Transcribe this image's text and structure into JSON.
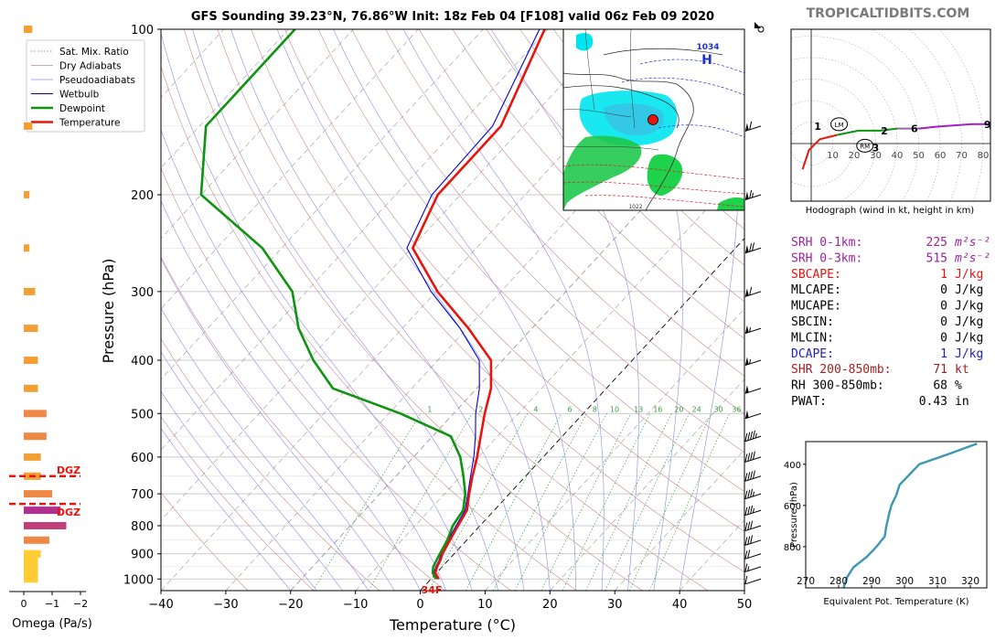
{
  "header": {
    "title": "GFS Sounding 39.23°N, 76.86°W Init: 18z Feb 04 [F108] valid 06z Feb 09 2020",
    "site": "TROPICALTIDBITS.COM"
  },
  "colors": {
    "temperature": "#e8140e",
    "dewpoint": "#0d9410",
    "wetbulb": "#0000dd",
    "dry_adiabat": "#c98b8b",
    "pseudoadiabat": "#8c8ce6",
    "mixing_ratio": "#3c9b3c",
    "dgz": "#e8140e",
    "theta_e": "#3a98b0"
  },
  "legend": {
    "items": [
      {
        "label": "Sat. Mix. Ratio",
        "style": "dotted",
        "color": "#3c9b3c"
      },
      {
        "label": "Dry Adiabats",
        "style": "solid-thin",
        "color": "#c98b8b"
      },
      {
        "label": "Pseudoadiabats",
        "style": "solid-thin",
        "color": "#8c8ce6"
      },
      {
        "label": "Wetbulb",
        "style": "solid",
        "color": "#0000dd"
      },
      {
        "label": "Dewpoint",
        "style": "thick",
        "color": "#0d9410"
      },
      {
        "label": "Temperature",
        "style": "thick",
        "color": "#e8140e"
      }
    ]
  },
  "axes": {
    "xlabel": "Temperature (°C)",
    "ylabel": "Pressure (hPa)",
    "omega_label": "Omega (Pa/s)",
    "x_ticks": [
      "−40",
      "−30",
      "−20",
      "−10",
      "0",
      "10",
      "20",
      "30",
      "40",
      "50"
    ],
    "x_tick_values": [
      -40,
      -30,
      -20,
      -10,
      0,
      10,
      20,
      30,
      40,
      50
    ],
    "p_ticks": [
      "100",
      "200",
      "300",
      "400",
      "500",
      "600",
      "700",
      "800",
      "900",
      "1000"
    ],
    "p_tick_values": [
      100,
      200,
      300,
      400,
      500,
      600,
      700,
      800,
      900,
      1000
    ],
    "omega_ticks": [
      "0",
      "−1",
      "−2"
    ],
    "omega_tick_values": [
      0,
      -1,
      -2
    ],
    "mixing_ratio_labels": [
      "1",
      "2",
      "4",
      "6",
      "8",
      "10",
      "13",
      "16",
      "20",
      "24",
      "30",
      "36"
    ]
  },
  "surface_label": "34F",
  "dgz_label": "DGZ",
  "chart_data": [
    {
      "type": "line",
      "name": "skew-t",
      "skew": "skew-t log-p",
      "xlim": [
        -40,
        50
      ],
      "ylim": [
        1050,
        100
      ],
      "y_scale": "log",
      "series": [
        {
          "name": "Temperature",
          "key": "temperature",
          "points": [
            [
              1000,
              1.2
            ],
            [
              975,
              -0.2
            ],
            [
              950,
              -0.8
            ],
            [
              925,
              -1.2
            ],
            [
              900,
              -1.8
            ],
            [
              850,
              -2.6
            ],
            [
              800,
              -3.4
            ],
            [
              750,
              -4.2
            ],
            [
              700,
              -6.2
            ],
            [
              650,
              -8.2
            ],
            [
              600,
              -10.2
            ],
            [
              550,
              -12.6
            ],
            [
              500,
              -15.2
            ],
            [
              450,
              -17.8
            ],
            [
              400,
              -21.8
            ],
            [
              350,
              -29.8
            ],
            [
              300,
              -39.8
            ],
            [
              250,
              -49.8
            ],
            [
              200,
              -53.5
            ],
            [
              150,
              -53.5
            ],
            [
              100,
              -60.5
            ]
          ]
        },
        {
          "name": "Wetbulb",
          "key": "wetbulb",
          "points": [
            [
              1000,
              0.9
            ],
            [
              975,
              -0.4
            ],
            [
              950,
              -1.0
            ],
            [
              925,
              -1.4
            ],
            [
              900,
              -2.0
            ],
            [
              850,
              -2.9
            ],
            [
              800,
              -3.7
            ],
            [
              750,
              -4.5
            ],
            [
              700,
              -6.4
            ],
            [
              650,
              -8.5
            ],
            [
              600,
              -10.7
            ],
            [
              550,
              -13.4
            ],
            [
              500,
              -16.6
            ],
            [
              450,
              -19.6
            ],
            [
              400,
              -23.6
            ],
            [
              350,
              -31.1
            ],
            [
              300,
              -40.8
            ],
            [
              250,
              -50.7
            ],
            [
              200,
              -54.4
            ],
            [
              150,
              -54.8
            ],
            [
              100,
              -61.3
            ]
          ]
        },
        {
          "name": "Dewpoint",
          "key": "dewpoint",
          "points": [
            [
              1000,
              0.8
            ],
            [
              975,
              -0.6
            ],
            [
              950,
              -1.4
            ],
            [
              925,
              -1.8
            ],
            [
              900,
              -2.2
            ],
            [
              850,
              -3.0
            ],
            [
              800,
              -4.2
            ],
            [
              750,
              -4.8
            ],
            [
              700,
              -6.8
            ],
            [
              650,
              -9.6
            ],
            [
              600,
              -12.8
            ],
            [
              550,
              -17.2
            ],
            [
              500,
              -28.2
            ],
            [
              450,
              -42.2
            ],
            [
              400,
              -49.2
            ],
            [
              350,
              -56.0
            ],
            [
              300,
              -62.2
            ],
            [
              250,
              -73.0
            ],
            [
              200,
              -90.0
            ],
            [
              150,
              -99.0
            ],
            [
              100,
              -99.0
            ]
          ]
        }
      ]
    },
    {
      "type": "bar",
      "name": "omega",
      "xlim": [
        0.2,
        -2.2
      ],
      "ylim": [
        1050,
        100
      ],
      "bars": [
        {
          "p": 1000,
          "omega": -0.5
        },
        {
          "p": 975,
          "omega": -0.5
        },
        {
          "p": 950,
          "omega": -0.5
        },
        {
          "p": 925,
          "omega": -0.5
        },
        {
          "p": 900,
          "omega": -0.6
        },
        {
          "p": 850,
          "omega": -0.9
        },
        {
          "p": 800,
          "omega": -1.5
        },
        {
          "p": 750,
          "omega": -1.3
        },
        {
          "p": 700,
          "omega": -1.0
        },
        {
          "p": 650,
          "omega": -0.6
        },
        {
          "p": 600,
          "omega": -0.6
        },
        {
          "p": 550,
          "omega": -0.8
        },
        {
          "p": 500,
          "omega": -0.8
        },
        {
          "p": 450,
          "omega": -0.5
        },
        {
          "p": 400,
          "omega": -0.5
        },
        {
          "p": 350,
          "omega": -0.5
        },
        {
          "p": 300,
          "omega": -0.4
        },
        {
          "p": 250,
          "omega": -0.2
        },
        {
          "p": 200,
          "omega": -0.2
        },
        {
          "p": 150,
          "omega": -0.3
        },
        {
          "p": 100,
          "omega": -0.3
        }
      ],
      "dgz_levels": [
        650,
        730
      ]
    },
    {
      "type": "line",
      "name": "hodograph",
      "xlabel": "Hodograph (wind in kt, height in km)",
      "ring_labels": [
        "10",
        "20",
        "30",
        "40",
        "50",
        "60",
        "70",
        "80"
      ],
      "ring_values": [
        10,
        20,
        30,
        40,
        50,
        60,
        70,
        80
      ],
      "segments": [
        {
          "color": "#e8140e",
          "points": [
            [
              -4,
              -12
            ],
            [
              -1,
              -3
            ],
            [
              4,
              2
            ],
            [
              12,
              4
            ]
          ]
        },
        {
          "color": "#0d9410",
          "points": [
            [
              12,
              4
            ],
            [
              22,
              6
            ],
            [
              32,
              6
            ],
            [
              40,
              7
            ]
          ]
        },
        {
          "color": "#8b6b9e",
          "points": [
            [
              40,
              7
            ],
            [
              50,
              7
            ]
          ]
        },
        {
          "color": "#a020c0",
          "points": [
            [
              50,
              7
            ],
            [
              60,
              8
            ],
            [
              75,
              9
            ],
            [
              83,
              9
            ]
          ]
        },
        {
          "color": "#2020d0",
          "points": [
            [
              83,
              9
            ],
            [
              85,
              0
            ]
          ]
        }
      ],
      "markers": [
        {
          "label": "1",
          "u": 3,
          "v": 8
        },
        {
          "label": "2",
          "u": 34,
          "v": 6
        },
        {
          "label": "3",
          "u": 30,
          "v": -2
        },
        {
          "label": "6",
          "u": 48,
          "v": 7
        },
        {
          "label": "9",
          "u": 82,
          "v": 9
        }
      ],
      "storm_motion": [
        {
          "label": "LM",
          "u": 13,
          "v": 9
        },
        {
          "label": "RM",
          "u": 25,
          "v": -1
        }
      ]
    },
    {
      "type": "line",
      "name": "theta-e",
      "xlabel": "Equivalent Pot. Temperature (K)",
      "ylabel": "Pressure (hPa)",
      "xlim": [
        270,
        325
      ],
      "ylim": [
        1000,
        290
      ],
      "x_ticks": [
        "270",
        "280",
        "290",
        "300",
        "310",
        "320"
      ],
      "x_tick_values": [
        270,
        280,
        290,
        300,
        310,
        320
      ],
      "y_ticks": [
        "400",
        "600",
        "800"
      ],
      "y_tick_values": [
        400,
        600,
        800
      ],
      "points": [
        [
          1000,
          281.5
        ],
        [
          950,
          282.5
        ],
        [
          900,
          284.5
        ],
        [
          850,
          288.5
        ],
        [
          800,
          291.5
        ],
        [
          750,
          294.0
        ],
        [
          700,
          294.5
        ],
        [
          650,
          295.2
        ],
        [
          600,
          296.0
        ],
        [
          550,
          297.5
        ],
        [
          500,
          298.5
        ],
        [
          450,
          301.5
        ],
        [
          400,
          304.5
        ],
        [
          350,
          313.5
        ],
        [
          300,
          322.0
        ]
      ]
    }
  ],
  "indices": [
    {
      "label": "SRH 0-1km:",
      "value": "225",
      "unit": "m²s⁻²",
      "color": "#a020a0"
    },
    {
      "label": "SRH 0-3km:",
      "value": "515",
      "unit": "m²s⁻²",
      "color": "#a020a0"
    },
    {
      "label": "SBCAPE:",
      "value": "1",
      "unit": "J/kg",
      "color": "#e8140e"
    },
    {
      "label": "MLCAPE:",
      "value": "0",
      "unit": "J/kg",
      "color": "#000000"
    },
    {
      "label": "MUCAPE:",
      "value": "0",
      "unit": "J/kg",
      "color": "#000000"
    },
    {
      "label": "SBCIN:",
      "value": "0",
      "unit": "J/kg",
      "color": "#000000"
    },
    {
      "label": "MLCIN:",
      "value": "0",
      "unit": "J/kg",
      "color": "#000000"
    },
    {
      "label": "DCAPE:",
      "value": "1",
      "unit": "J/kg",
      "color": "#2020c0"
    },
    {
      "label": "SHR 200-850mb:",
      "value": "71",
      "unit": "kt",
      "color": "#a02020"
    },
    {
      "label": "RH 300-850mb:",
      "value": "68",
      "unit": "%",
      "color": "#000000"
    },
    {
      "label": "PWAT:",
      "value": "0.43",
      "unit": "in",
      "color": "#000000"
    }
  ],
  "map": {
    "labels": [
      "1034",
      "H",
      "1022"
    ],
    "marker_color": "#e8140e"
  },
  "wind_barbs": [
    {
      "p": 100,
      "speed": 0
    },
    {
      "p": 150,
      "speed": 60
    },
    {
      "p": 200,
      "speed": 65
    },
    {
      "p": 250,
      "speed": 70
    },
    {
      "p": 300,
      "speed": 60
    },
    {
      "p": 350,
      "speed": 55
    },
    {
      "p": 400,
      "speed": 55
    },
    {
      "p": 450,
      "speed": 50
    },
    {
      "p": 500,
      "speed": 50
    },
    {
      "p": 550,
      "speed": 45
    },
    {
      "p": 600,
      "speed": 40
    },
    {
      "p": 650,
      "speed": 40
    },
    {
      "p": 700,
      "speed": 35
    },
    {
      "p": 750,
      "speed": 35
    },
    {
      "p": 800,
      "speed": 30
    },
    {
      "p": 850,
      "speed": 30
    },
    {
      "p": 900,
      "speed": 20
    },
    {
      "p": 950,
      "speed": 15
    },
    {
      "p": 1000,
      "speed": 10
    }
  ]
}
